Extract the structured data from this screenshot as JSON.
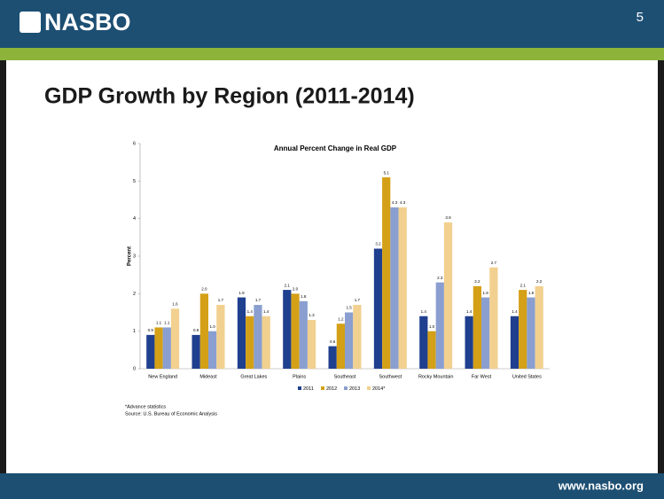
{
  "slide": {
    "logo": "NASBO",
    "page_number": "5",
    "title": "GDP Growth by Region (2011-2014)",
    "footer": "www.nasbo.org",
    "notes": [
      "*Advance statistics",
      "Source: U.S. Bureau of Economic Analysis"
    ]
  },
  "chart_data": {
    "type": "bar",
    "title": "Annual Percent Change in Real GDP",
    "y_label": "Percent",
    "categories": [
      "New England",
      "Mideast",
      "Great Lakes",
      "Plains",
      "Southeast",
      "Southwest",
      "Rocky Mountain",
      "Far West",
      "United States"
    ],
    "series": [
      {
        "name": "2011",
        "color": "#1f3f8f",
        "values": [
          0.9,
          0.9,
          1.9,
          2.1,
          0.6,
          3.2,
          1.4,
          1.4,
          1.4
        ],
        "value_labels": [
          "0.9",
          "0.9",
          "1.9",
          "2.1",
          "0.6",
          "3.2",
          "1.4",
          "1.4",
          "1.4"
        ]
      },
      {
        "name": "2012",
        "color": "#d4a017",
        "values": [
          1.1,
          2.0,
          1.4,
          2.0,
          1.2,
          5.1,
          1.0,
          2.2,
          2.1
        ],
        "value_labels": [
          "1.1",
          "2.0",
          "1.4",
          "2.0",
          "1.2",
          "5.1",
          "1.0",
          "2.2",
          "2.1"
        ]
      },
      {
        "name": "2013",
        "color": "#8a9fd0",
        "values": [
          1.1,
          1.0,
          1.7,
          1.8,
          1.5,
          4.3,
          2.3,
          1.9,
          1.9
        ],
        "value_labels": [
          "1.1",
          "1.0",
          "1.7",
          "1.8",
          "1.5",
          "4.3",
          "2.3",
          "1.9",
          "1.9"
        ]
      },
      {
        "name": "2014*",
        "color": "#f2d08f",
        "values": [
          1.6,
          1.7,
          1.4,
          1.3,
          1.7,
          4.3,
          3.9,
          2.7,
          2.2
        ],
        "value_labels": [
          "1.6",
          "1.7",
          "1.4",
          "1.3",
          "1.7",
          "4.3",
          "3.9",
          "2.7",
          "2.2"
        ]
      }
    ],
    "ylim": [
      0,
      6
    ],
    "yticks": [
      0,
      1,
      2,
      3,
      4,
      5,
      6
    ],
    "legend": "bottom"
  }
}
